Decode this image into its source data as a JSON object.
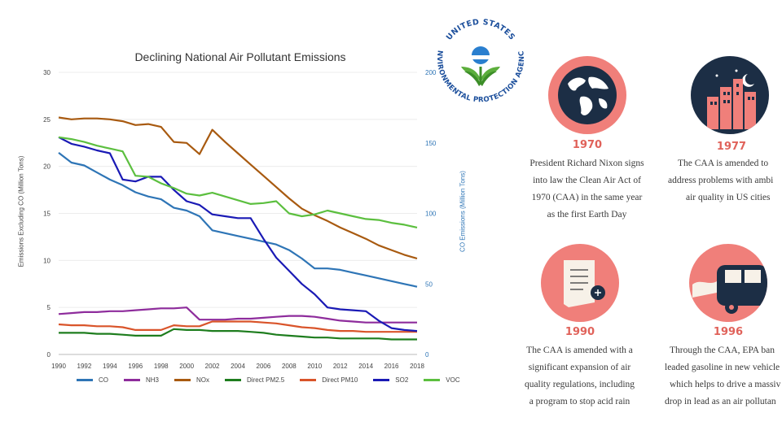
{
  "chart_data": {
    "type": "line",
    "title": "Declining National Air Pollutant Emissions",
    "ylabel": "Emissions Excluding CO (Million Tons)",
    "y2label": "CO Emissions (Million Tons)",
    "x": [
      1990,
      1991,
      1992,
      1993,
      1994,
      1995,
      1996,
      1997,
      1998,
      1999,
      2000,
      2001,
      2002,
      2003,
      2004,
      2005,
      2006,
      2007,
      2008,
      2009,
      2010,
      2011,
      2012,
      2013,
      2014,
      2015,
      2016,
      2017,
      2018
    ],
    "xticks": [
      1990,
      1992,
      1994,
      1996,
      1998,
      2000,
      2002,
      2004,
      2006,
      2008,
      2010,
      2012,
      2014,
      2016,
      2018
    ],
    "ylim": [
      0,
      30
    ],
    "yticks": [
      0,
      5,
      10,
      15,
      20,
      25,
      30
    ],
    "y2lim": [
      0,
      200
    ],
    "y2ticks": [
      0,
      50,
      100,
      150,
      200
    ],
    "series": [
      {
        "name": "CO",
        "color": "#2e75b6",
        "axis": "right",
        "values": [
          143,
          136,
          134,
          129,
          124,
          120,
          115,
          112,
          110,
          104,
          102,
          98,
          88,
          86,
          84,
          82,
          80,
          78,
          74,
          68,
          61,
          61,
          60,
          58,
          56,
          54,
          52,
          50,
          48
        ]
      },
      {
        "name": "NH3",
        "color": "#8e2c9c",
        "axis": "left",
        "values": [
          4.3,
          4.4,
          4.5,
          4.5,
          4.6,
          4.6,
          4.7,
          4.8,
          4.9,
          4.9,
          5.0,
          3.7,
          3.7,
          3.7,
          3.8,
          3.8,
          3.9,
          4.0,
          4.1,
          4.1,
          4.0,
          3.8,
          3.6,
          3.5,
          3.4,
          3.4,
          3.4,
          3.4,
          3.4
        ]
      },
      {
        "name": "NOx",
        "color": "#a85a10",
        "axis": "left",
        "values": [
          25.2,
          25.0,
          25.1,
          25.1,
          25.0,
          24.8,
          24.4,
          24.5,
          24.2,
          22.6,
          22.5,
          21.3,
          23.9,
          22.6,
          21.4,
          20.2,
          19.0,
          17.8,
          16.6,
          15.5,
          14.8,
          14.2,
          13.5,
          12.9,
          12.3,
          11.6,
          11.1,
          10.6,
          10.2
        ]
      },
      {
        "name": "Direct PM2.5",
        "color": "#1e7d1e",
        "axis": "left",
        "values": [
          2.3,
          2.3,
          2.3,
          2.2,
          2.2,
          2.1,
          2.0,
          2.0,
          2.0,
          2.7,
          2.6,
          2.6,
          2.5,
          2.5,
          2.5,
          2.4,
          2.3,
          2.1,
          2.0,
          1.9,
          1.8,
          1.8,
          1.7,
          1.7,
          1.7,
          1.7,
          1.6,
          1.6,
          1.6
        ]
      },
      {
        "name": "Direct PM10",
        "color": "#d9542a",
        "axis": "left",
        "values": [
          3.2,
          3.1,
          3.1,
          3.0,
          3.0,
          2.9,
          2.6,
          2.6,
          2.6,
          3.1,
          3.0,
          3.0,
          3.5,
          3.5,
          3.5,
          3.5,
          3.4,
          3.3,
          3.1,
          2.9,
          2.8,
          2.6,
          2.5,
          2.5,
          2.4,
          2.4,
          2.4,
          2.4,
          2.4
        ]
      },
      {
        "name": "SO2",
        "color": "#1a1ab5",
        "axis": "left",
        "values": [
          23.1,
          22.4,
          22.1,
          21.7,
          21.4,
          18.6,
          18.4,
          18.9,
          18.9,
          17.5,
          16.3,
          15.9,
          14.9,
          14.7,
          14.5,
          14.5,
          12.3,
          10.3,
          8.9,
          7.5,
          6.4,
          5.0,
          4.8,
          4.7,
          4.6,
          3.6,
          2.8,
          2.6,
          2.5
        ]
      },
      {
        "name": "VOC",
        "color": "#5cbf3f",
        "axis": "left",
        "values": [
          23.1,
          22.9,
          22.6,
          22.2,
          21.9,
          21.6,
          19.0,
          18.9,
          18.2,
          17.7,
          17.1,
          16.9,
          17.2,
          16.8,
          16.4,
          16.0,
          16.1,
          16.3,
          15.0,
          14.7,
          14.9,
          15.3,
          15.0,
          14.7,
          14.4,
          14.3,
          14.0,
          13.8,
          13.5
        ]
      }
    ]
  },
  "seal": {
    "text_top": "UNITED STATES",
    "text_bottom": "ENVIRONMENTAL PROTECTION AGENCY"
  },
  "timeline": [
    {
      "year": "1970",
      "lines": [
        "President Richard Nixon signs",
        "into law the Clean Air Act of",
        "1970 (CAA) in the same year",
        "as the first Earth Day"
      ]
    },
    {
      "year": "1977",
      "lines": [
        "The CAA is amended to",
        "address problems with ambi",
        "air quality in US cities"
      ]
    },
    {
      "year": "1990",
      "lines": [
        "The CAA is amended with a",
        "significant expansion of air",
        "quality regulations, including",
        "a program to stop acid rain"
      ]
    },
    {
      "year": "1996",
      "lines": [
        "Through the CAA, EPA ban",
        "leaded gasoline in new vehicle",
        "which helps to drive a massiv",
        "drop in lead as an air pollutan"
      ]
    }
  ],
  "colors": {
    "accent": "#e0625a",
    "icon_bg": "#f07f7a",
    "dark": "#1c2e45"
  }
}
